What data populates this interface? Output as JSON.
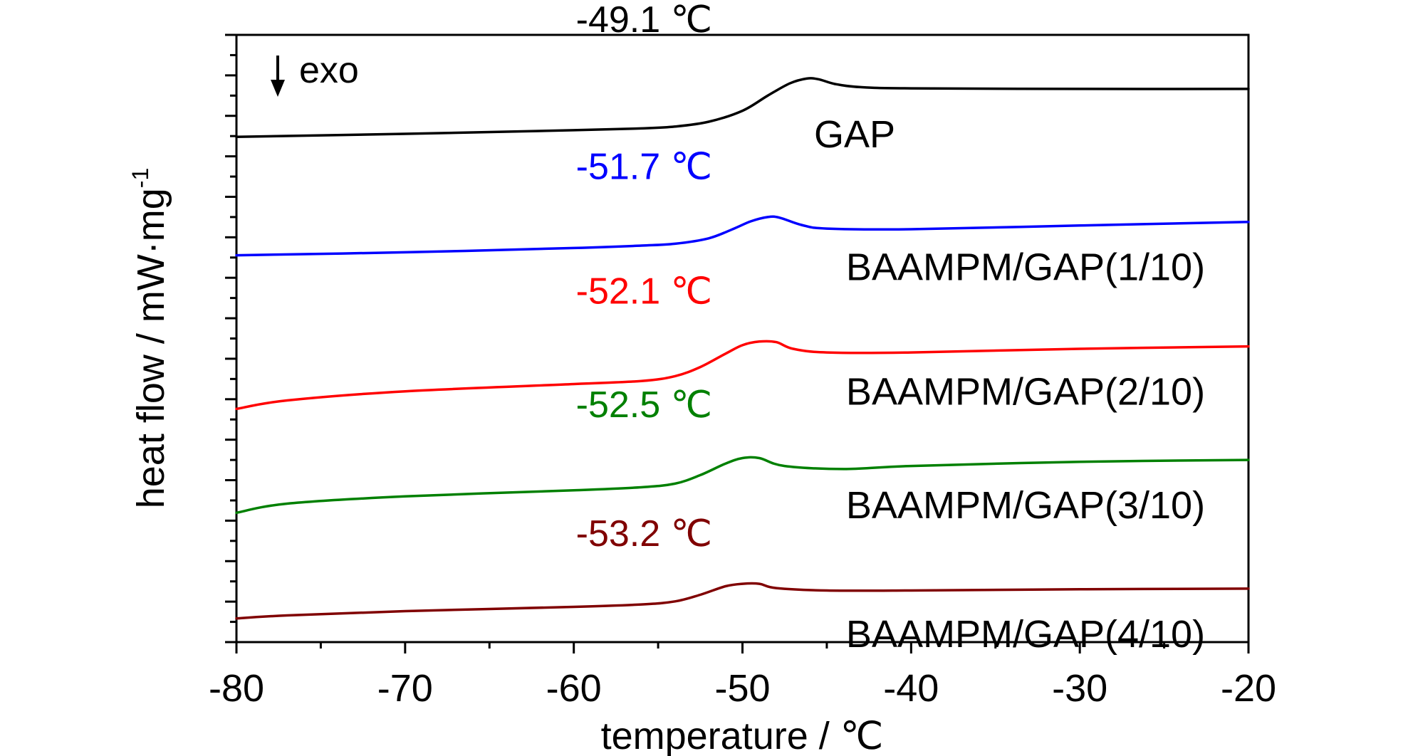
{
  "chart_data": {
    "type": "line",
    "title": "",
    "xlabel": "temperature / ℃",
    "ylabel": "heat flow / mW·mg",
    "ylabel_superscript": "-1",
    "xlim": [
      -80,
      -20
    ],
    "xticks": [
      -80,
      -70,
      -60,
      -50,
      -40,
      -30,
      -20
    ],
    "xtick_labels": [
      "-80",
      "-70",
      "-60",
      "-50",
      "-40",
      "-30",
      "-20"
    ],
    "ylim": [
      0,
      1
    ],
    "y_tick_labels_shown": false,
    "grid": false,
    "legend": "none",
    "annotation": "exo",
    "series": [
      {
        "name": "GAP",
        "tg_label": "-49.1 ℃",
        "color": "#000000",
        "points": [
          [
            -80,
            0.832
          ],
          [
            -70,
            0.837
          ],
          [
            -60,
            0.843
          ],
          [
            -56,
            0.846
          ],
          [
            -54,
            0.849
          ],
          [
            -52,
            0.857
          ],
          [
            -50,
            0.875
          ],
          [
            -48.5,
            0.9
          ],
          [
            -47.2,
            0.92
          ],
          [
            -46.2,
            0.928
          ],
          [
            -45.5,
            0.927
          ],
          [
            -44.5,
            0.919
          ],
          [
            -43,
            0.914
          ],
          [
            -40,
            0.912
          ],
          [
            -30,
            0.911
          ],
          [
            -20,
            0.911
          ]
        ]
      },
      {
        "name": "BAAMPM/GAP(1/10)",
        "tg_label": "-51.7 ℃",
        "color": "#0000ff",
        "points": [
          [
            -80,
            0.637
          ],
          [
            -70,
            0.642
          ],
          [
            -60,
            0.649
          ],
          [
            -56,
            0.653
          ],
          [
            -54,
            0.656
          ],
          [
            -52,
            0.665
          ],
          [
            -50.5,
            0.681
          ],
          [
            -49.5,
            0.693
          ],
          [
            -48.5,
            0.7
          ],
          [
            -47.8,
            0.699
          ],
          [
            -46.5,
            0.687
          ],
          [
            -45,
            0.681
          ],
          [
            -40,
            0.68
          ],
          [
            -30,
            0.686
          ],
          [
            -20,
            0.692
          ]
        ]
      },
      {
        "name": "BAAMPM/GAP(2/10)",
        "tg_label": "-52.1 ℃",
        "color": "#ff0000",
        "points": [
          [
            -80,
            0.384
          ],
          [
            -77,
            0.398
          ],
          [
            -70,
            0.413
          ],
          [
            -60,
            0.425
          ],
          [
            -56,
            0.43
          ],
          [
            -54,
            0.438
          ],
          [
            -52.5,
            0.453
          ],
          [
            -51,
            0.475
          ],
          [
            -50,
            0.489
          ],
          [
            -49,
            0.495
          ],
          [
            -48,
            0.494
          ],
          [
            -47,
            0.483
          ],
          [
            -45,
            0.477
          ],
          [
            -40,
            0.477
          ],
          [
            -30,
            0.483
          ],
          [
            -20,
            0.487
          ]
        ]
      },
      {
        "name": "BAAMPM/GAP(3/10)",
        "tg_label": "-52.5 ℃",
        "color": "#008000",
        "points": [
          [
            -80,
            0.213
          ],
          [
            -77,
            0.228
          ],
          [
            -70,
            0.24
          ],
          [
            -60,
            0.25
          ],
          [
            -56,
            0.255
          ],
          [
            -54,
            0.261
          ],
          [
            -52.5,
            0.275
          ],
          [
            -51,
            0.294
          ],
          [
            -50,
            0.303
          ],
          [
            -49,
            0.303
          ],
          [
            -47.5,
            0.29
          ],
          [
            -44,
            0.285
          ],
          [
            -40,
            0.29
          ],
          [
            -30,
            0.297
          ],
          [
            -20,
            0.3
          ]
        ]
      },
      {
        "name": "BAAMPM/GAP(4/10)",
        "tg_label": "-53.2 ℃",
        "color": "#800000",
        "points": [
          [
            -80,
            0.039
          ],
          [
            -77,
            0.044
          ],
          [
            -70,
            0.051
          ],
          [
            -60,
            0.058
          ],
          [
            -56,
            0.062
          ],
          [
            -54,
            0.067
          ],
          [
            -52.5,
            0.078
          ],
          [
            -51,
            0.092
          ],
          [
            -50,
            0.096
          ],
          [
            -49,
            0.096
          ],
          [
            -48,
            0.089
          ],
          [
            -45,
            0.085
          ],
          [
            -40,
            0.085
          ],
          [
            -30,
            0.087
          ],
          [
            -20,
            0.088
          ]
        ]
      }
    ]
  }
}
